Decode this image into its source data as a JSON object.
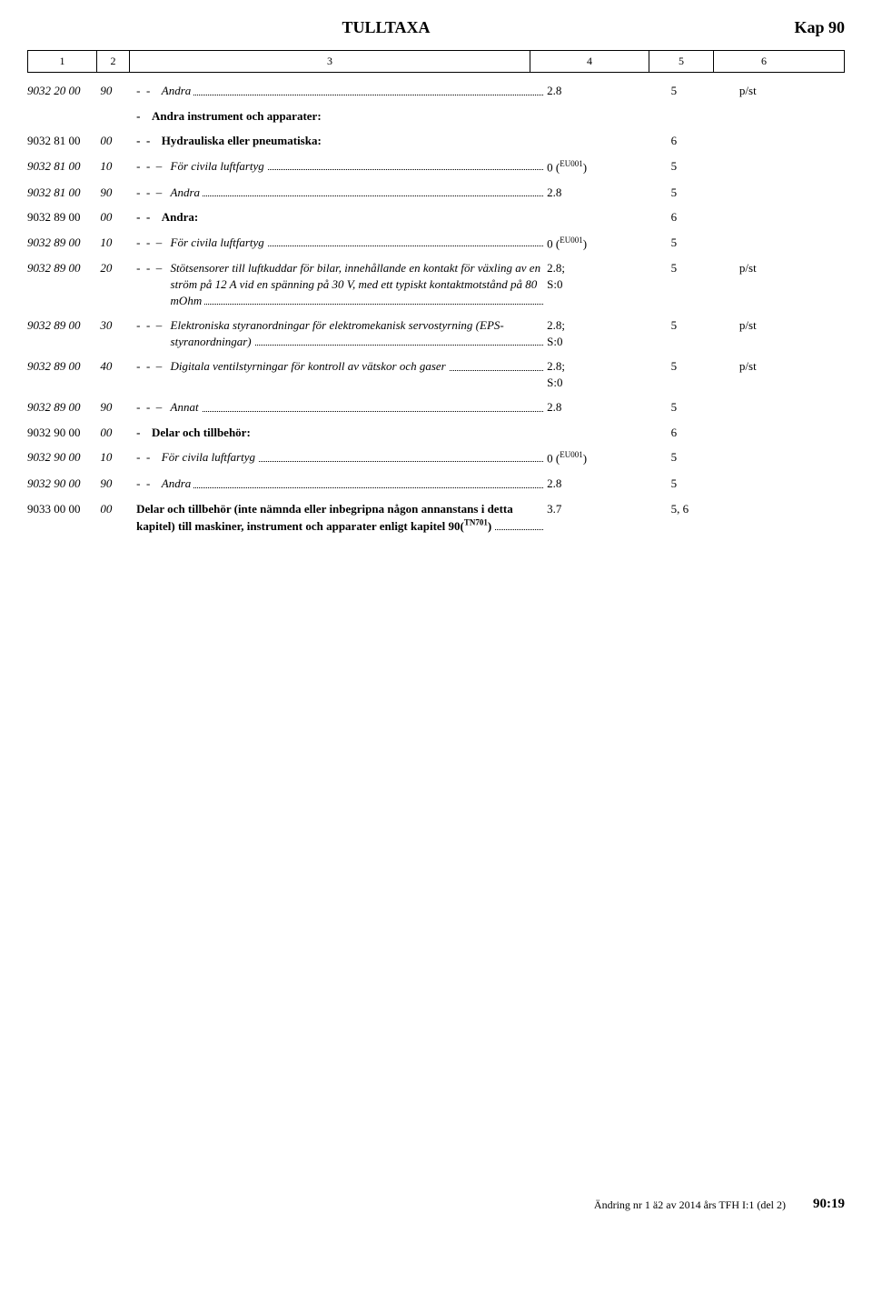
{
  "header": {
    "title": "TULLTAXA",
    "chapter": "Kap 90"
  },
  "colHeaders": [
    "1",
    "2",
    "3",
    "4",
    "5",
    "6"
  ],
  "footer": {
    "left": "Ändring nr 1 ä2 av 2014 års TFH I:1 (del 2)",
    "right": "90:19"
  },
  "rows": [
    {
      "code": "9032 20 00",
      "sub": "90",
      "bullets": "-  -  ",
      "text": "Andra",
      "col4": "2.8",
      "col5": "5",
      "col6": "p/st",
      "italic": true,
      "dots": true
    },
    {
      "bullets": "-  ",
      "text": "Andra instrument och apparater:",
      "bold": true
    },
    {
      "code": "9032 81 00",
      "sub": "00",
      "bullets": "-  -  ",
      "text": "Hydrauliska eller pneumatiska:",
      "col5": "6",
      "bold": true
    },
    {
      "code": "9032 81 00",
      "sub": "10",
      "bullets": "-  -  – ",
      "text": "För civila luftfartyg",
      "col4": "0 (EU001)",
      "sup4": true,
      "col5": "5",
      "italic": true,
      "dots": true
    },
    {
      "code": "9032 81 00",
      "sub": "90",
      "bullets": "-  -  – ",
      "text": "Andra",
      "col4": "2.8",
      "col5": "5",
      "italic": true,
      "dots": true
    },
    {
      "code": "9032 89 00",
      "sub": "00",
      "bullets": "-  -  ",
      "text": "Andra:",
      "col5": "6",
      "bold": true
    },
    {
      "code": "9032 89 00",
      "sub": "10",
      "bullets": "-  -  – ",
      "text": "För civila luftfartyg",
      "col4": "0 (EU001)",
      "sup4": true,
      "col5": "5",
      "italic": true,
      "dots": true
    },
    {
      "code": "9032 89 00",
      "sub": "20",
      "bullets": "-  -  – ",
      "text": "Stötsensorer till luftkuddar för bilar, innehållande en kontakt för växling av en ström på 12 A vid en spänning på 30 V, med ett typiskt kontaktmotstånd på 80 mOhm ",
      "col4": "2.8;\nS:0",
      "col5": "5",
      "col6": "p/st",
      "italic": true,
      "dots": true
    },
    {
      "code": "9032 89 00",
      "sub": "30",
      "bullets": "-  -  – ",
      "text": "Elektroniska styranordningar för elektromekanisk servostyrning (EPS-styranordningar)",
      "col4": "2.8;\nS:0",
      "col5": "5",
      "col6": "p/st",
      "italic": true,
      "dots": true
    },
    {
      "code": "9032 89 00",
      "sub": "40",
      "bullets": "-  -  – ",
      "text": "Digitala ventilstyrningar för kontroll av vätskor och gaser",
      "col4": "2.8;\nS:0",
      "col5": "5",
      "col6": "p/st",
      "italic": true,
      "dots": true
    },
    {
      "code": "9032 89 00",
      "sub": "90",
      "bullets": "-  -  – ",
      "text": "Annat",
      "col4": "2.8",
      "col5": "5",
      "italic": true,
      "dots": true
    },
    {
      "code": "9032 90 00",
      "sub": "00",
      "bullets": "-  ",
      "text": "Delar och tillbehör:",
      "col5": "6",
      "bold": true
    },
    {
      "code": "9032 90 00",
      "sub": "10",
      "bullets": "-  -  ",
      "text": "För civila luftfartyg",
      "col4": "0 (EU001)",
      "sup4": true,
      "col5": "5",
      "italic": true,
      "dots": true
    },
    {
      "code": "9032 90 00",
      "sub": "90",
      "bullets": "-  -  ",
      "text": "Andra",
      "col4": "2.8",
      "col5": "5",
      "italic": true,
      "dots": true
    },
    {
      "code": "9033 00 00",
      "sub": "00",
      "text": "Delar och tillbehör (inte nämnda eller inbegripna någon annanstans i detta kapitel) till maskiner, instrument och apparater enligt kapitel 90(TN701)",
      "supText": true,
      "col4": "3.7",
      "col5": "5, 6",
      "bold": true,
      "dots": true,
      "changebar": true
    }
  ]
}
